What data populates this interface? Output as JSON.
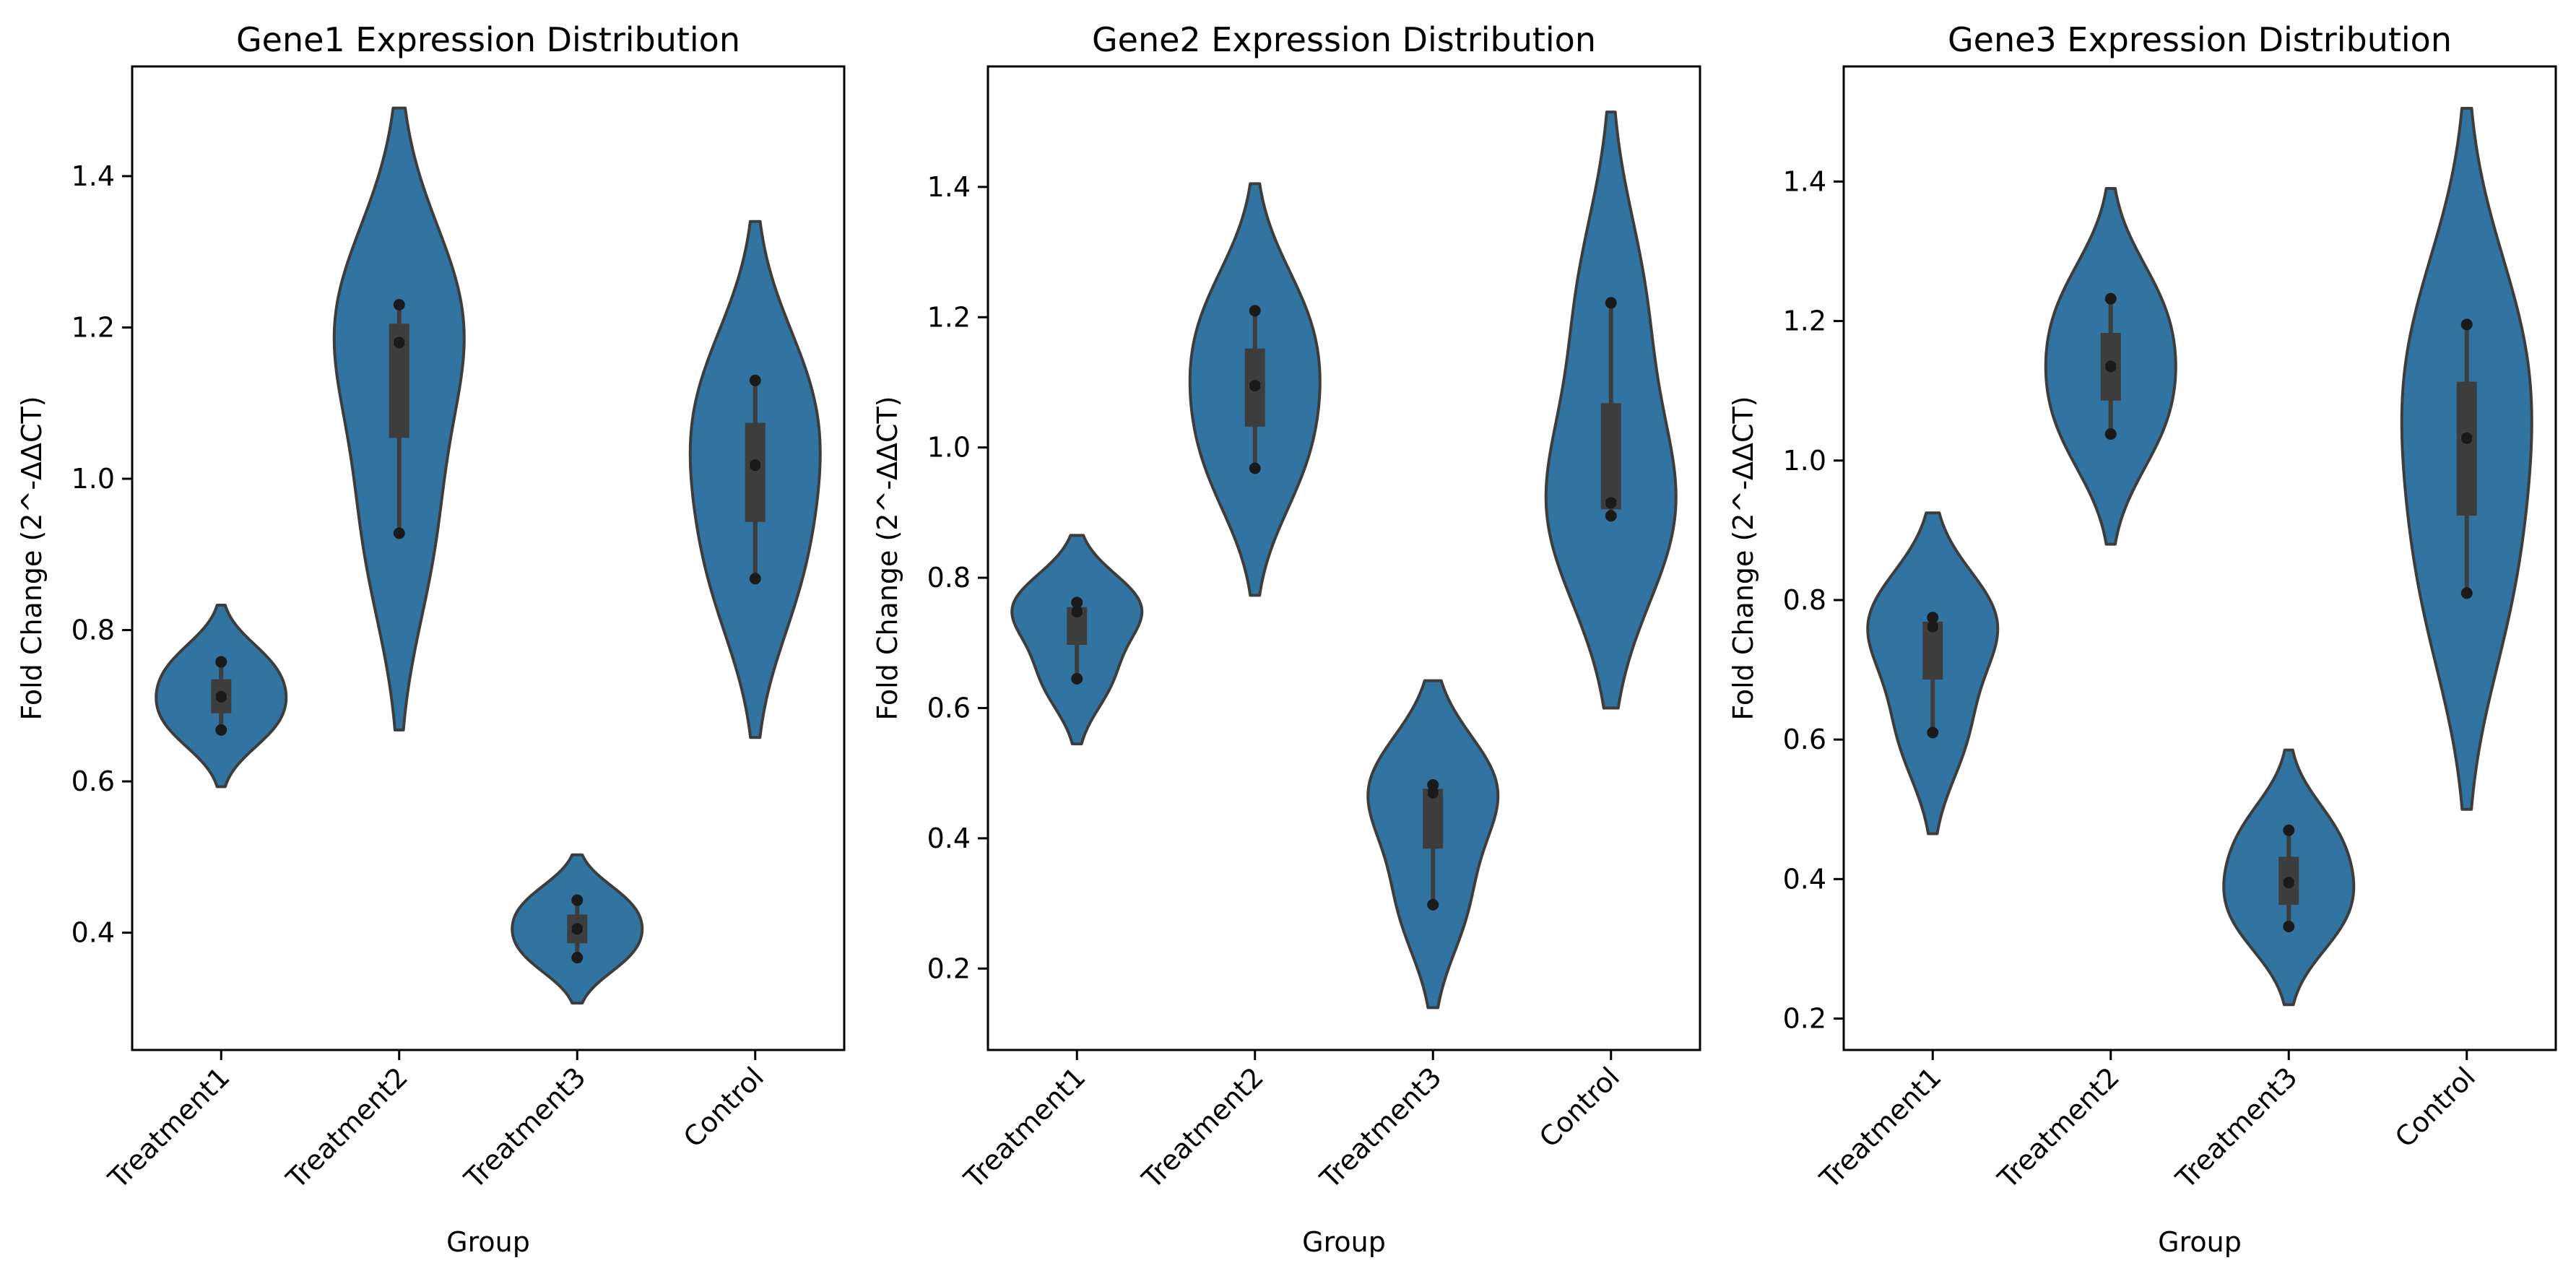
{
  "figure": {
    "violin_color": "#3274a1",
    "edge_color": "#3d3d3d",
    "box_color": "#3d3d3d",
    "median_color": "#ffffff",
    "point_color": "#1a1a1a"
  },
  "chart_data": [
    {
      "type": "violin",
      "title": "Gene1 Expression Distribution",
      "xlabel": "Group",
      "ylabel": "Fold Change (2^-ΔΔCT)",
      "categories": [
        "Treatment1",
        "Treatment2",
        "Treatment3",
        "Control"
      ],
      "ylim": [
        0.245,
        1.545
      ],
      "yticks": [
        0.4,
        0.6,
        0.8,
        1.0,
        1.2,
        1.4
      ],
      "grid": false,
      "groups": [
        {
          "name": "Treatment1",
          "points": [
            0.668,
            0.712,
            0.758
          ],
          "q1": 0.69,
          "median": 0.712,
          "q3": 0.735,
          "violin_range": [
            0.593,
            0.833
          ]
        },
        {
          "name": "Treatment2",
          "points": [
            0.928,
            1.18,
            1.23
          ],
          "q1": 1.054,
          "median": 1.18,
          "q3": 1.205,
          "violin_range": [
            0.668,
            1.49
          ]
        },
        {
          "name": "Treatment3",
          "points": [
            0.367,
            0.405,
            0.443
          ],
          "q1": 0.386,
          "median": 0.405,
          "q3": 0.424,
          "violin_range": [
            0.307,
            0.503
          ]
        },
        {
          "name": "Control",
          "points": [
            0.868,
            1.018,
            1.13
          ],
          "q1": 0.943,
          "median": 1.018,
          "q3": 1.074,
          "violin_range": [
            0.658,
            1.34
          ]
        }
      ]
    },
    {
      "type": "violin",
      "title": "Gene2 Expression Distribution",
      "xlabel": "Group",
      "ylabel": "Fold Change (2^-ΔΔCT)",
      "categories": [
        "Treatment1",
        "Treatment2",
        "Treatment3",
        "Control"
      ],
      "ylim": [
        0.075,
        1.585
      ],
      "yticks": [
        0.2,
        0.4,
        0.6,
        0.8,
        1.0,
        1.2,
        1.4
      ],
      "grid": false,
      "groups": [
        {
          "name": "Treatment1",
          "points": [
            0.645,
            0.748,
            0.762
          ],
          "q1": 0.697,
          "median": 0.748,
          "q3": 0.755,
          "violin_range": [
            0.545,
            0.865
          ]
        },
        {
          "name": "Treatment2",
          "points": [
            0.968,
            1.095,
            1.21
          ],
          "q1": 1.032,
          "median": 1.095,
          "q3": 1.152,
          "violin_range": [
            0.773,
            1.405
          ]
        },
        {
          "name": "Treatment3",
          "points": [
            0.298,
            0.47,
            0.482
          ],
          "q1": 0.384,
          "median": 0.47,
          "q3": 0.476,
          "violin_range": [
            0.14,
            0.642
          ]
        },
        {
          "name": "Control",
          "points": [
            0.895,
            0.915,
            1.222
          ],
          "q1": 0.905,
          "median": 0.915,
          "q3": 1.068,
          "violin_range": [
            0.6,
            1.515
          ]
        }
      ]
    },
    {
      "type": "violin",
      "title": "Gene3 Expression Distribution",
      "xlabel": "Group",
      "ylabel": "Fold Change (2^-ΔΔCT)",
      "categories": [
        "Treatment1",
        "Treatment2",
        "Treatment3",
        "Control"
      ],
      "ylim": [
        0.155,
        1.565
      ],
      "yticks": [
        0.2,
        0.4,
        0.6,
        0.8,
        1.0,
        1.2,
        1.4
      ],
      "grid": false,
      "groups": [
        {
          "name": "Treatment1",
          "points": [
            0.61,
            0.762,
            0.775
          ],
          "q1": 0.686,
          "median": 0.762,
          "q3": 0.769,
          "violin_range": [
            0.465,
            0.925
          ]
        },
        {
          "name": "Treatment2",
          "points": [
            1.038,
            1.135,
            1.232
          ],
          "q1": 1.086,
          "median": 1.135,
          "q3": 1.183,
          "violin_range": [
            0.88,
            1.39
          ]
        },
        {
          "name": "Treatment3",
          "points": [
            0.332,
            0.395,
            0.47
          ],
          "q1": 0.363,
          "median": 0.395,
          "q3": 0.432,
          "violin_range": [
            0.22,
            0.585
          ]
        },
        {
          "name": "Control",
          "points": [
            0.81,
            1.032,
            1.195
          ],
          "q1": 0.921,
          "median": 1.032,
          "q3": 1.113,
          "violin_range": [
            0.5,
            1.505
          ]
        }
      ]
    }
  ]
}
